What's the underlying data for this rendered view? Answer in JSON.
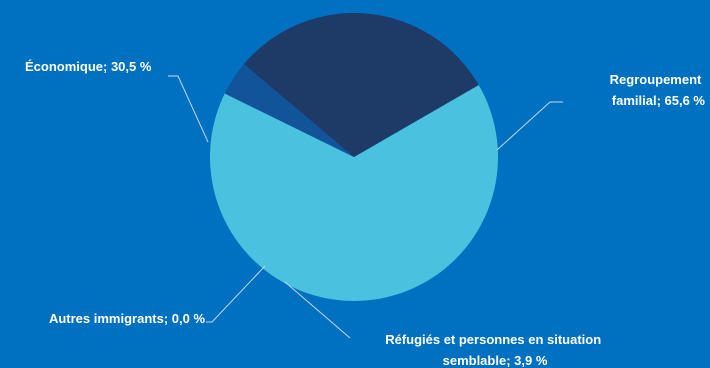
{
  "chart_data": {
    "type": "pie",
    "title": "",
    "series": [
      {
        "values": [
          65.6,
          3.9,
          0.0,
          30.5
        ]
      }
    ],
    "categories": [
      "Regroupement familial",
      "Réfugiés et personnes en situation semblable",
      "Autres immigrants",
      "Économique"
    ],
    "slices": [
      {
        "label_lines": [
          "Regroupement",
          "familial; 65,6 %"
        ],
        "value": 65.6,
        "color": "#4BC1E0"
      },
      {
        "label_lines": [
          "Réfugiés et personnes en situation",
          "semblable; 3,9 %"
        ],
        "value": 3.9,
        "color": "#12549A"
      },
      {
        "label_lines": [
          "Autres immigrants; 0,0 %"
        ],
        "value": 0.0,
        "color": "#0E4C8E"
      },
      {
        "label_lines": [
          "Économique; 30,5 %"
        ],
        "value": 30.5,
        "color": "#1E3A66"
      }
    ],
    "start_angle_deg": -30,
    "direction": "clockwise",
    "legend": "none",
    "background": "#0070C0"
  }
}
